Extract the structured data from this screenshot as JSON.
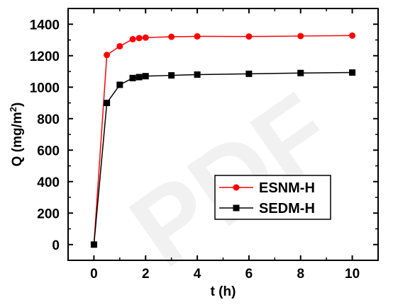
{
  "chart_data": {
    "type": "line",
    "title": "",
    "xlabel": "t (h)",
    "ylabel_parts": {
      "main": "Q (mg/m",
      "sup": "2",
      "end": ")"
    },
    "xlim": [
      -1,
      11
    ],
    "ylim": [
      -100,
      1500
    ],
    "xticks": [
      0,
      2,
      4,
      6,
      8,
      10
    ],
    "yticks": [
      0,
      200,
      400,
      600,
      800,
      1000,
      1200,
      1400
    ],
    "grid": false,
    "legend_position": "bottom-right",
    "series": [
      {
        "name": "ESNM-H",
        "color": "#ff0000",
        "marker": "circle",
        "x": [
          0,
          0.5,
          1,
          1.5,
          1.75,
          2,
          3,
          4,
          6,
          8,
          10
        ],
        "y": [
          0,
          1205,
          1260,
          1305,
          1312,
          1315,
          1320,
          1323,
          1322,
          1325,
          1328
        ]
      },
      {
        "name": "SEDM-H",
        "color": "#000000",
        "marker": "square",
        "x": [
          0,
          0.5,
          1,
          1.5,
          1.75,
          2,
          3,
          4,
          6,
          8,
          10
        ],
        "y": [
          0,
          900,
          1015,
          1058,
          1064,
          1070,
          1075,
          1080,
          1085,
          1090,
          1093
        ]
      }
    ]
  }
}
